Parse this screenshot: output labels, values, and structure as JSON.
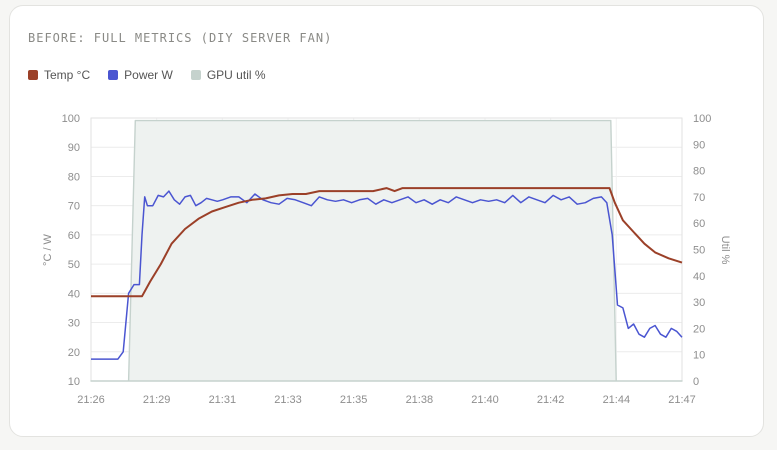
{
  "card": {
    "title": "BEFORE: FULL METRICS (DIY SERVER FAN)"
  },
  "chart_data": {
    "type": "line",
    "title": "BEFORE: FULL METRICS (DIY SERVER FAN)",
    "ylabel_left": "°C / W",
    "ylabel_right": "Util %",
    "ylim_left": [
      10,
      100
    ],
    "ylim_right": [
      0,
      100
    ],
    "yticks_left": [
      100,
      90,
      80,
      70,
      60,
      50,
      40,
      30,
      20,
      10
    ],
    "yticks_right": [
      100,
      90,
      80,
      70,
      60,
      50,
      40,
      30,
      20,
      10,
      0
    ],
    "xticks": [
      "21:26",
      "21:29",
      "21:31",
      "21:33",
      "21:35",
      "21:38",
      "21:40",
      "21:42",
      "21:44",
      "21:47"
    ],
    "x_range_min": [
      0,
      22
    ],
    "grid": true,
    "legend_position": "top-left",
    "series": [
      {
        "name": "Temp °C",
        "axis": "left",
        "color": "#9b4028",
        "x": [
          0,
          1.0,
          1.9,
          2.2,
          2.6,
          3.0,
          3.5,
          4.0,
          4.5,
          5.0,
          5.5,
          6.0,
          6.5,
          7.0,
          7.5,
          8.0,
          8.5,
          9.0,
          9.5,
          10.0,
          10.5,
          11.0,
          11.3,
          11.6,
          12.0,
          13.0,
          14.0,
          15.0,
          16.0,
          17.0,
          18.0,
          19.0,
          19.3,
          19.5,
          19.8,
          20.2,
          20.6,
          21.0,
          21.5,
          22.0
        ],
        "y": [
          39,
          39,
          39,
          44,
          50,
          57,
          62,
          65.5,
          68,
          69.5,
          71,
          72,
          72.5,
          73.5,
          74,
          74,
          75,
          75,
          75,
          75,
          75,
          76,
          75,
          76,
          76,
          76,
          76,
          76,
          76,
          76,
          76,
          76,
          76,
          71,
          65,
          61,
          57,
          54,
          52,
          50.5
        ]
      },
      {
        "name": "Power W",
        "axis": "left",
        "color": "#4a55d1",
        "x": [
          0,
          0.5,
          1.0,
          1.2,
          1.4,
          1.6,
          1.8,
          1.9,
          2.0,
          2.1,
          2.3,
          2.5,
          2.7,
          2.9,
          3.1,
          3.3,
          3.5,
          3.7,
          3.9,
          4.1,
          4.3,
          4.5,
          4.7,
          4.9,
          5.2,
          5.5,
          5.8,
          6.1,
          6.4,
          6.7,
          7.0,
          7.3,
          7.6,
          7.9,
          8.2,
          8.5,
          8.8,
          9.1,
          9.4,
          9.7,
          10.0,
          10.3,
          10.6,
          10.9,
          11.2,
          11.5,
          11.8,
          12.1,
          12.4,
          12.7,
          13.0,
          13.3,
          13.6,
          13.9,
          14.2,
          14.5,
          14.8,
          15.1,
          15.4,
          15.7,
          16.0,
          16.3,
          16.6,
          16.9,
          17.2,
          17.5,
          17.8,
          18.1,
          18.4,
          18.7,
          19.0,
          19.2,
          19.4,
          19.6,
          19.8,
          20.0,
          20.2,
          20.4,
          20.6,
          20.8,
          21.0,
          21.2,
          21.4,
          21.6,
          21.8,
          22.0
        ],
        "y": [
          17.5,
          17.5,
          17.5,
          20,
          40,
          43,
          43,
          60,
          73,
          70,
          70,
          73.5,
          73,
          75,
          72,
          70.5,
          73,
          73.5,
          70,
          71,
          72.5,
          72,
          71.5,
          72,
          73,
          73,
          71,
          74,
          72,
          71,
          70.5,
          72.5,
          72,
          71,
          70,
          73,
          72,
          71.5,
          72,
          71,
          72,
          72.5,
          70.5,
          72,
          71,
          72,
          73,
          71,
          72,
          70.5,
          72,
          71,
          73,
          72,
          71,
          72,
          71.5,
          72,
          71,
          73.5,
          71,
          73,
          72,
          71,
          73.5,
          72,
          73,
          70.5,
          71,
          72.5,
          73,
          71,
          60,
          36,
          35,
          28,
          29.5,
          26,
          25,
          28,
          29,
          26,
          25,
          28,
          27,
          25
        ]
      },
      {
        "name": "GPU util %",
        "axis": "right",
        "color": "#c5d2cd",
        "type": "area",
        "x": [
          0,
          1.4,
          1.65,
          19.35,
          19.55,
          22.0
        ],
        "y": [
          0,
          0,
          99,
          99,
          0,
          0
        ]
      }
    ]
  }
}
